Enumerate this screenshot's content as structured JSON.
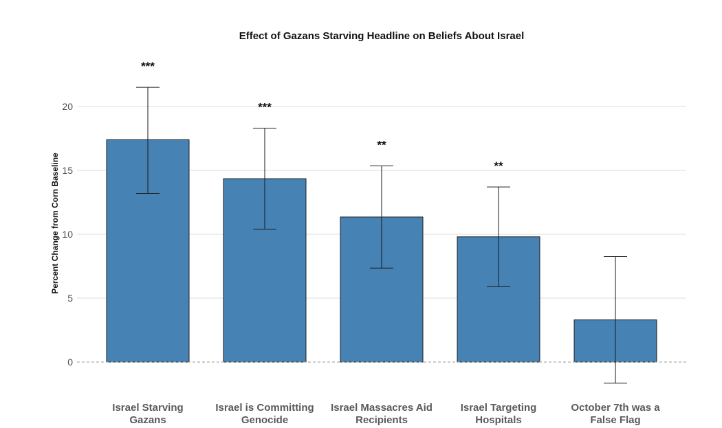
{
  "chart_data": {
    "type": "bar",
    "title": "Effect of Gazans Starving Headline on Beliefs About Israel",
    "xlabel": "",
    "ylabel": "Percent Change from Corn Baseline",
    "ylim": [
      -3.2,
      23
    ],
    "yticks": [
      0,
      5,
      10,
      15,
      20
    ],
    "grid": true,
    "baseline_dashed": true,
    "bar_color": "#4682b4",
    "categories": [
      [
        "Israel Starving",
        "Gazans"
      ],
      [
        "Israel is Committing",
        "Genocide"
      ],
      [
        "Israel Massacres Aid",
        "Recipients"
      ],
      [
        "Israel Targeting",
        "Hospitals"
      ],
      [
        "October 7th was a",
        "False Flag"
      ]
    ],
    "values": [
      17.4,
      14.35,
      11.35,
      9.8,
      3.3
    ],
    "error_low": [
      13.2,
      10.4,
      7.35,
      5.9,
      -1.65
    ],
    "error_high": [
      21.5,
      18.3,
      15.35,
      13.7,
      8.25
    ],
    "significance": [
      "***",
      "***",
      "**",
      "**",
      ""
    ]
  }
}
